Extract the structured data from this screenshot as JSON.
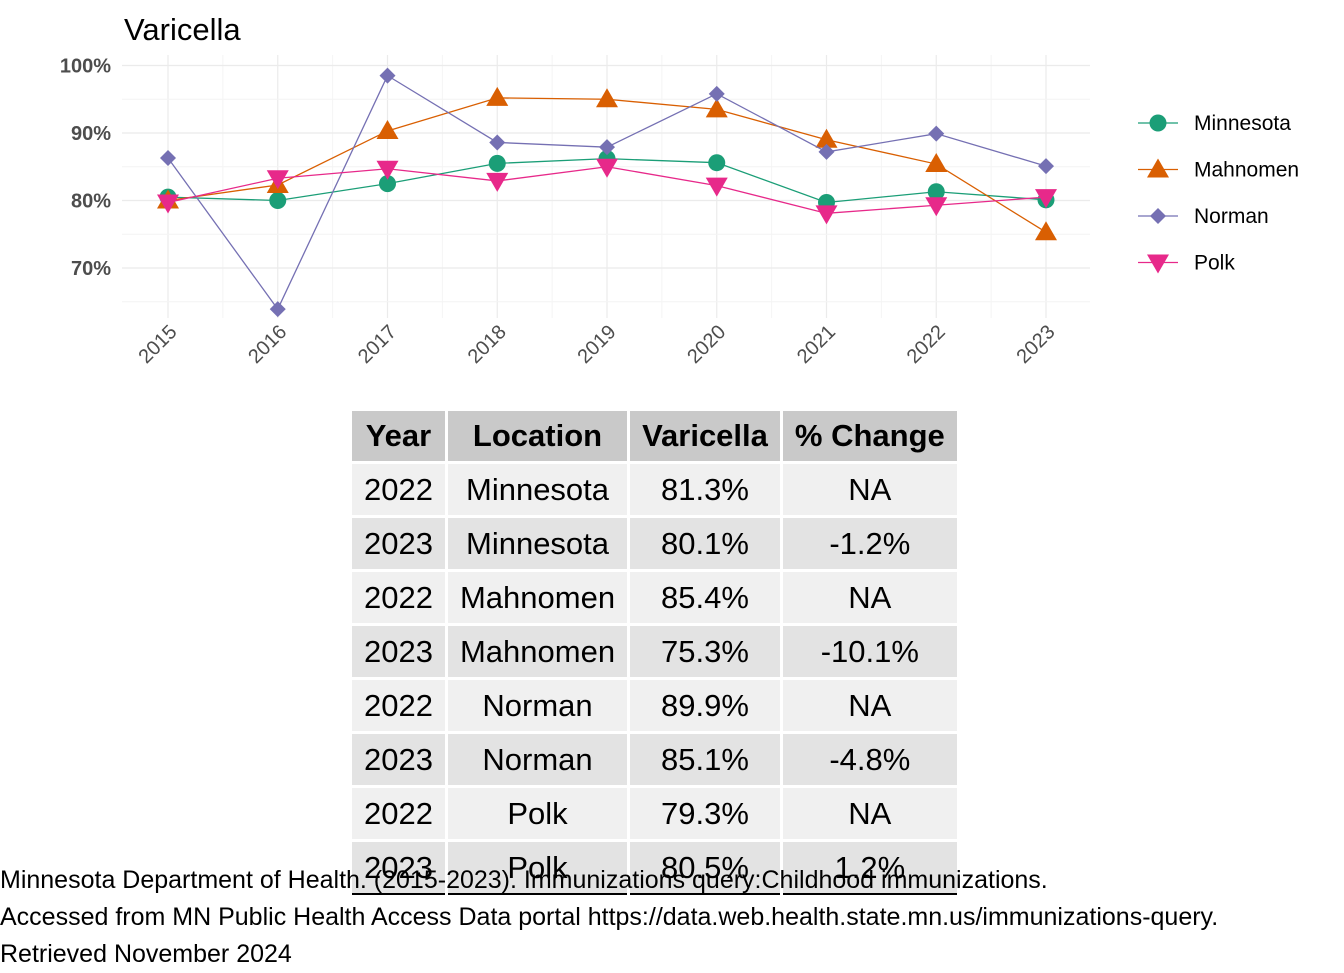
{
  "chart_data": {
    "type": "line",
    "title": "Varicella",
    "xlabel": "",
    "ylabel": "",
    "x": [
      "2015",
      "2016",
      "2017",
      "2018",
      "2019",
      "2020",
      "2021",
      "2022",
      "2023"
    ],
    "ylim": [
      63,
      101
    ],
    "yticks": [
      70,
      80,
      90,
      100
    ],
    "ytick_labels": [
      "70%",
      "80%",
      "90%",
      "100%"
    ],
    "grid": true,
    "legend_position": "right",
    "series": [
      {
        "name": "Minnesota",
        "color": "#1b9e77",
        "marker": "circle",
        "values": [
          80.5,
          80.0,
          82.5,
          85.5,
          86.2,
          85.6,
          79.7,
          81.3,
          80.1
        ]
      },
      {
        "name": "Mahnomen",
        "color": "#d95f02",
        "marker": "triangle-up",
        "values": [
          80.0,
          82.3,
          90.3,
          95.2,
          95.0,
          93.5,
          89.0,
          85.4,
          75.3
        ]
      },
      {
        "name": "Norman",
        "color": "#7570b3",
        "marker": "diamond",
        "values": [
          86.3,
          63.9,
          98.5,
          88.6,
          87.9,
          95.8,
          87.2,
          89.9,
          85.1
        ]
      },
      {
        "name": "Polk",
        "color": "#e7298a",
        "marker": "triangle-down",
        "values": [
          79.7,
          83.3,
          84.7,
          82.9,
          85.0,
          82.2,
          78.1,
          79.3,
          80.5
        ]
      }
    ]
  },
  "table": {
    "headers": [
      "Year",
      "Location",
      "Varicella",
      "% Change"
    ],
    "rows": [
      [
        "2022",
        "Minnesota",
        "81.3%",
        "NA"
      ],
      [
        "2023",
        "Minnesota",
        "80.1%",
        "-1.2%"
      ],
      [
        "2022",
        "Mahnomen",
        "85.4%",
        "NA"
      ],
      [
        "2023",
        "Mahnomen",
        "75.3%",
        "-10.1%"
      ],
      [
        "2022",
        "Norman",
        "89.9%",
        "NA"
      ],
      [
        "2023",
        "Norman",
        "85.1%",
        "-4.8%"
      ],
      [
        "2022",
        "Polk",
        "79.3%",
        "NA"
      ],
      [
        "2023",
        "Polk",
        "80.5%",
        "1.2%"
      ]
    ]
  },
  "caption": {
    "line1": "Minnesota Department of Health. (2015-2023). Immunizations query:Childhood immunizations.",
    "line2": "Accessed from MN Public Health Access Data portal https://data.web.health.state.mn.us/immunizations-query.",
    "line3": "Retrieved November 2024"
  }
}
